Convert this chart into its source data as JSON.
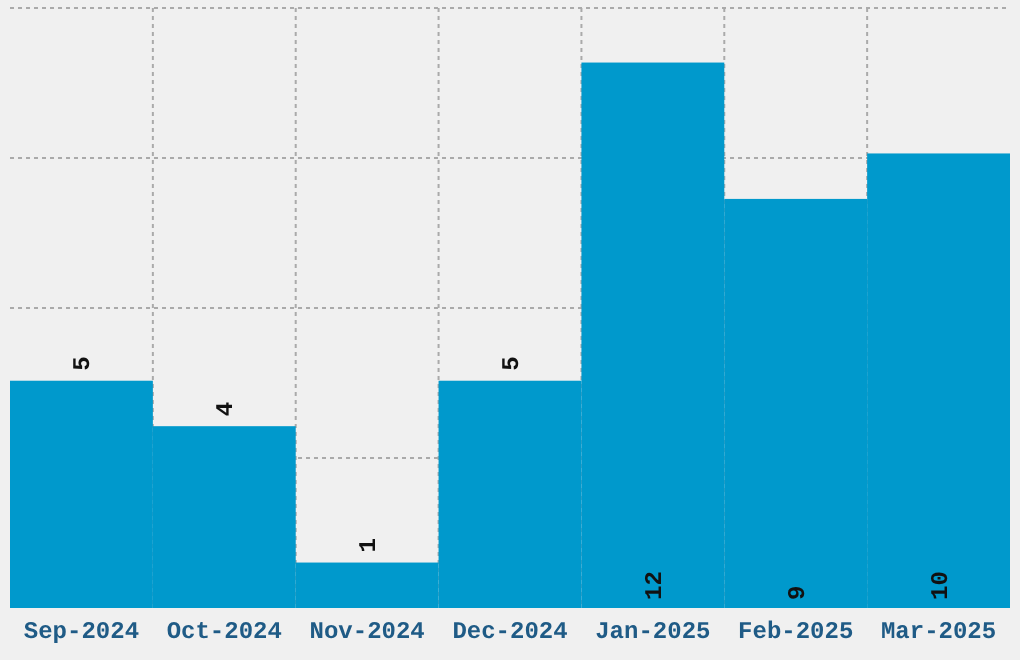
{
  "chart_data": {
    "type": "bar",
    "categories": [
      "Sep-2024",
      "Oct-2024",
      "Nov-2024",
      "Dec-2024",
      "Jan-2025",
      "Feb-2025",
      "Mar-2025"
    ],
    "values": [
      5,
      4,
      1,
      5,
      12,
      9,
      10
    ],
    "color": "#0099cc",
    "ylim": [
      0,
      13.2
    ],
    "yticks": [
      {
        "value": 3.3,
        "label": null
      },
      {
        "value": 6.6,
        "label": null
      },
      {
        "value": 9.9,
        "label": null
      },
      {
        "value": 13.2,
        "label": null
      }
    ],
    "tick_labels": "x",
    "grid": true,
    "data_labels": true
  }
}
